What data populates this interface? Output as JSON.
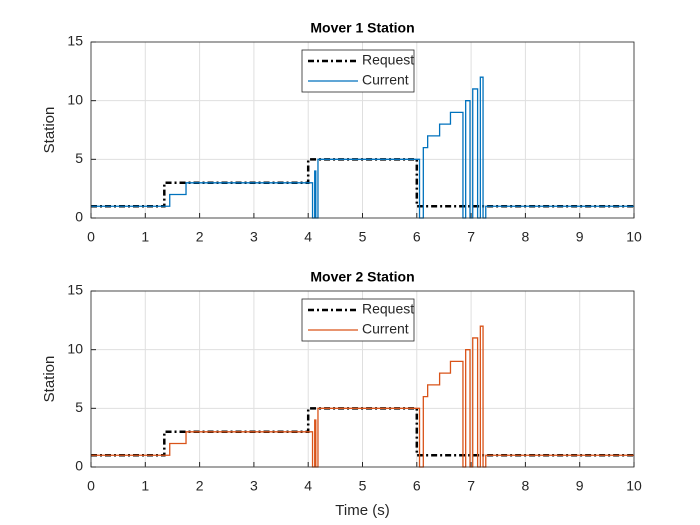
{
  "chart_data": [
    {
      "type": "line",
      "title": "Mover 1 Station",
      "ylabel": "Station",
      "xlim": [
        0,
        10
      ],
      "ylim": [
        0,
        15
      ],
      "xticks": [
        0,
        1,
        2,
        3,
        4,
        5,
        6,
        7,
        8,
        9,
        10
      ],
      "yticks": [
        0,
        5,
        10,
        15
      ],
      "grid": true,
      "legend": "top",
      "series": [
        {
          "name": "Request",
          "color": "#000000",
          "dash": "6 3 2 3",
          "width": 2.5,
          "x": [
            0,
            1.35,
            1.35,
            4.0,
            4.0,
            6.0,
            6.0,
            10
          ],
          "values": [
            1,
            1,
            3,
            3,
            5,
            5,
            1,
            1
          ]
        },
        {
          "name": "Current",
          "color": "#0072bd",
          "width": 1.3,
          "x": [
            0,
            1.45,
            1.45,
            1.75,
            1.75,
            4.08,
            4.08,
            4.12,
            4.12,
            4.14,
            4.14,
            4.18,
            4.18,
            6.05,
            6.05,
            6.12,
            6.12,
            6.2,
            6.2,
            6.42,
            6.42,
            6.62,
            6.62,
            6.85,
            6.85,
            6.9,
            6.9,
            6.98,
            6.98,
            7.03,
            7.03,
            7.12,
            7.12,
            7.17,
            7.17,
            7.22,
            7.22,
            7.27,
            7.27,
            10
          ],
          "values": [
            1,
            1,
            2,
            2,
            3,
            3,
            0,
            0,
            4,
            4,
            0,
            0,
            5,
            5,
            0,
            0,
            6,
            6,
            7,
            7,
            8,
            8,
            9,
            9,
            0,
            0,
            10,
            10,
            0,
            0,
            11,
            11,
            0,
            0,
            12,
            12,
            0,
            0,
            1,
            1
          ]
        }
      ]
    },
    {
      "type": "line",
      "title": "Mover 2 Station",
      "ylabel": "Station",
      "xlabel": "Time (s)",
      "xlim": [
        0,
        10
      ],
      "ylim": [
        0,
        15
      ],
      "xticks": [
        0,
        1,
        2,
        3,
        4,
        5,
        6,
        7,
        8,
        9,
        10
      ],
      "yticks": [
        0,
        5,
        10,
        15
      ],
      "grid": true,
      "legend": "top",
      "series": [
        {
          "name": "Request",
          "color": "#000000",
          "dash": "6 3 2 3",
          "width": 2.5,
          "x": [
            0,
            1.35,
            1.35,
            4.0,
            4.0,
            6.0,
            6.0,
            10
          ],
          "values": [
            1,
            1,
            3,
            3,
            5,
            5,
            1,
            1
          ]
        },
        {
          "name": "Current",
          "color": "#d95319",
          "width": 1.3,
          "x": [
            0,
            1.45,
            1.45,
            1.75,
            1.75,
            4.08,
            4.08,
            4.12,
            4.12,
            4.14,
            4.14,
            4.18,
            4.18,
            6.05,
            6.05,
            6.12,
            6.12,
            6.2,
            6.2,
            6.42,
            6.42,
            6.62,
            6.62,
            6.85,
            6.85,
            6.9,
            6.9,
            6.98,
            6.98,
            7.03,
            7.03,
            7.12,
            7.12,
            7.17,
            7.17,
            7.22,
            7.22,
            7.27,
            7.27,
            10
          ],
          "values": [
            1,
            1,
            2,
            2,
            3,
            3,
            0,
            0,
            4,
            4,
            0,
            0,
            5,
            5,
            0,
            0,
            6,
            6,
            7,
            7,
            8,
            8,
            9,
            9,
            0,
            0,
            10,
            10,
            0,
            0,
            11,
            11,
            0,
            0,
            12,
            12,
            0,
            0,
            1,
            1
          ]
        }
      ]
    }
  ]
}
